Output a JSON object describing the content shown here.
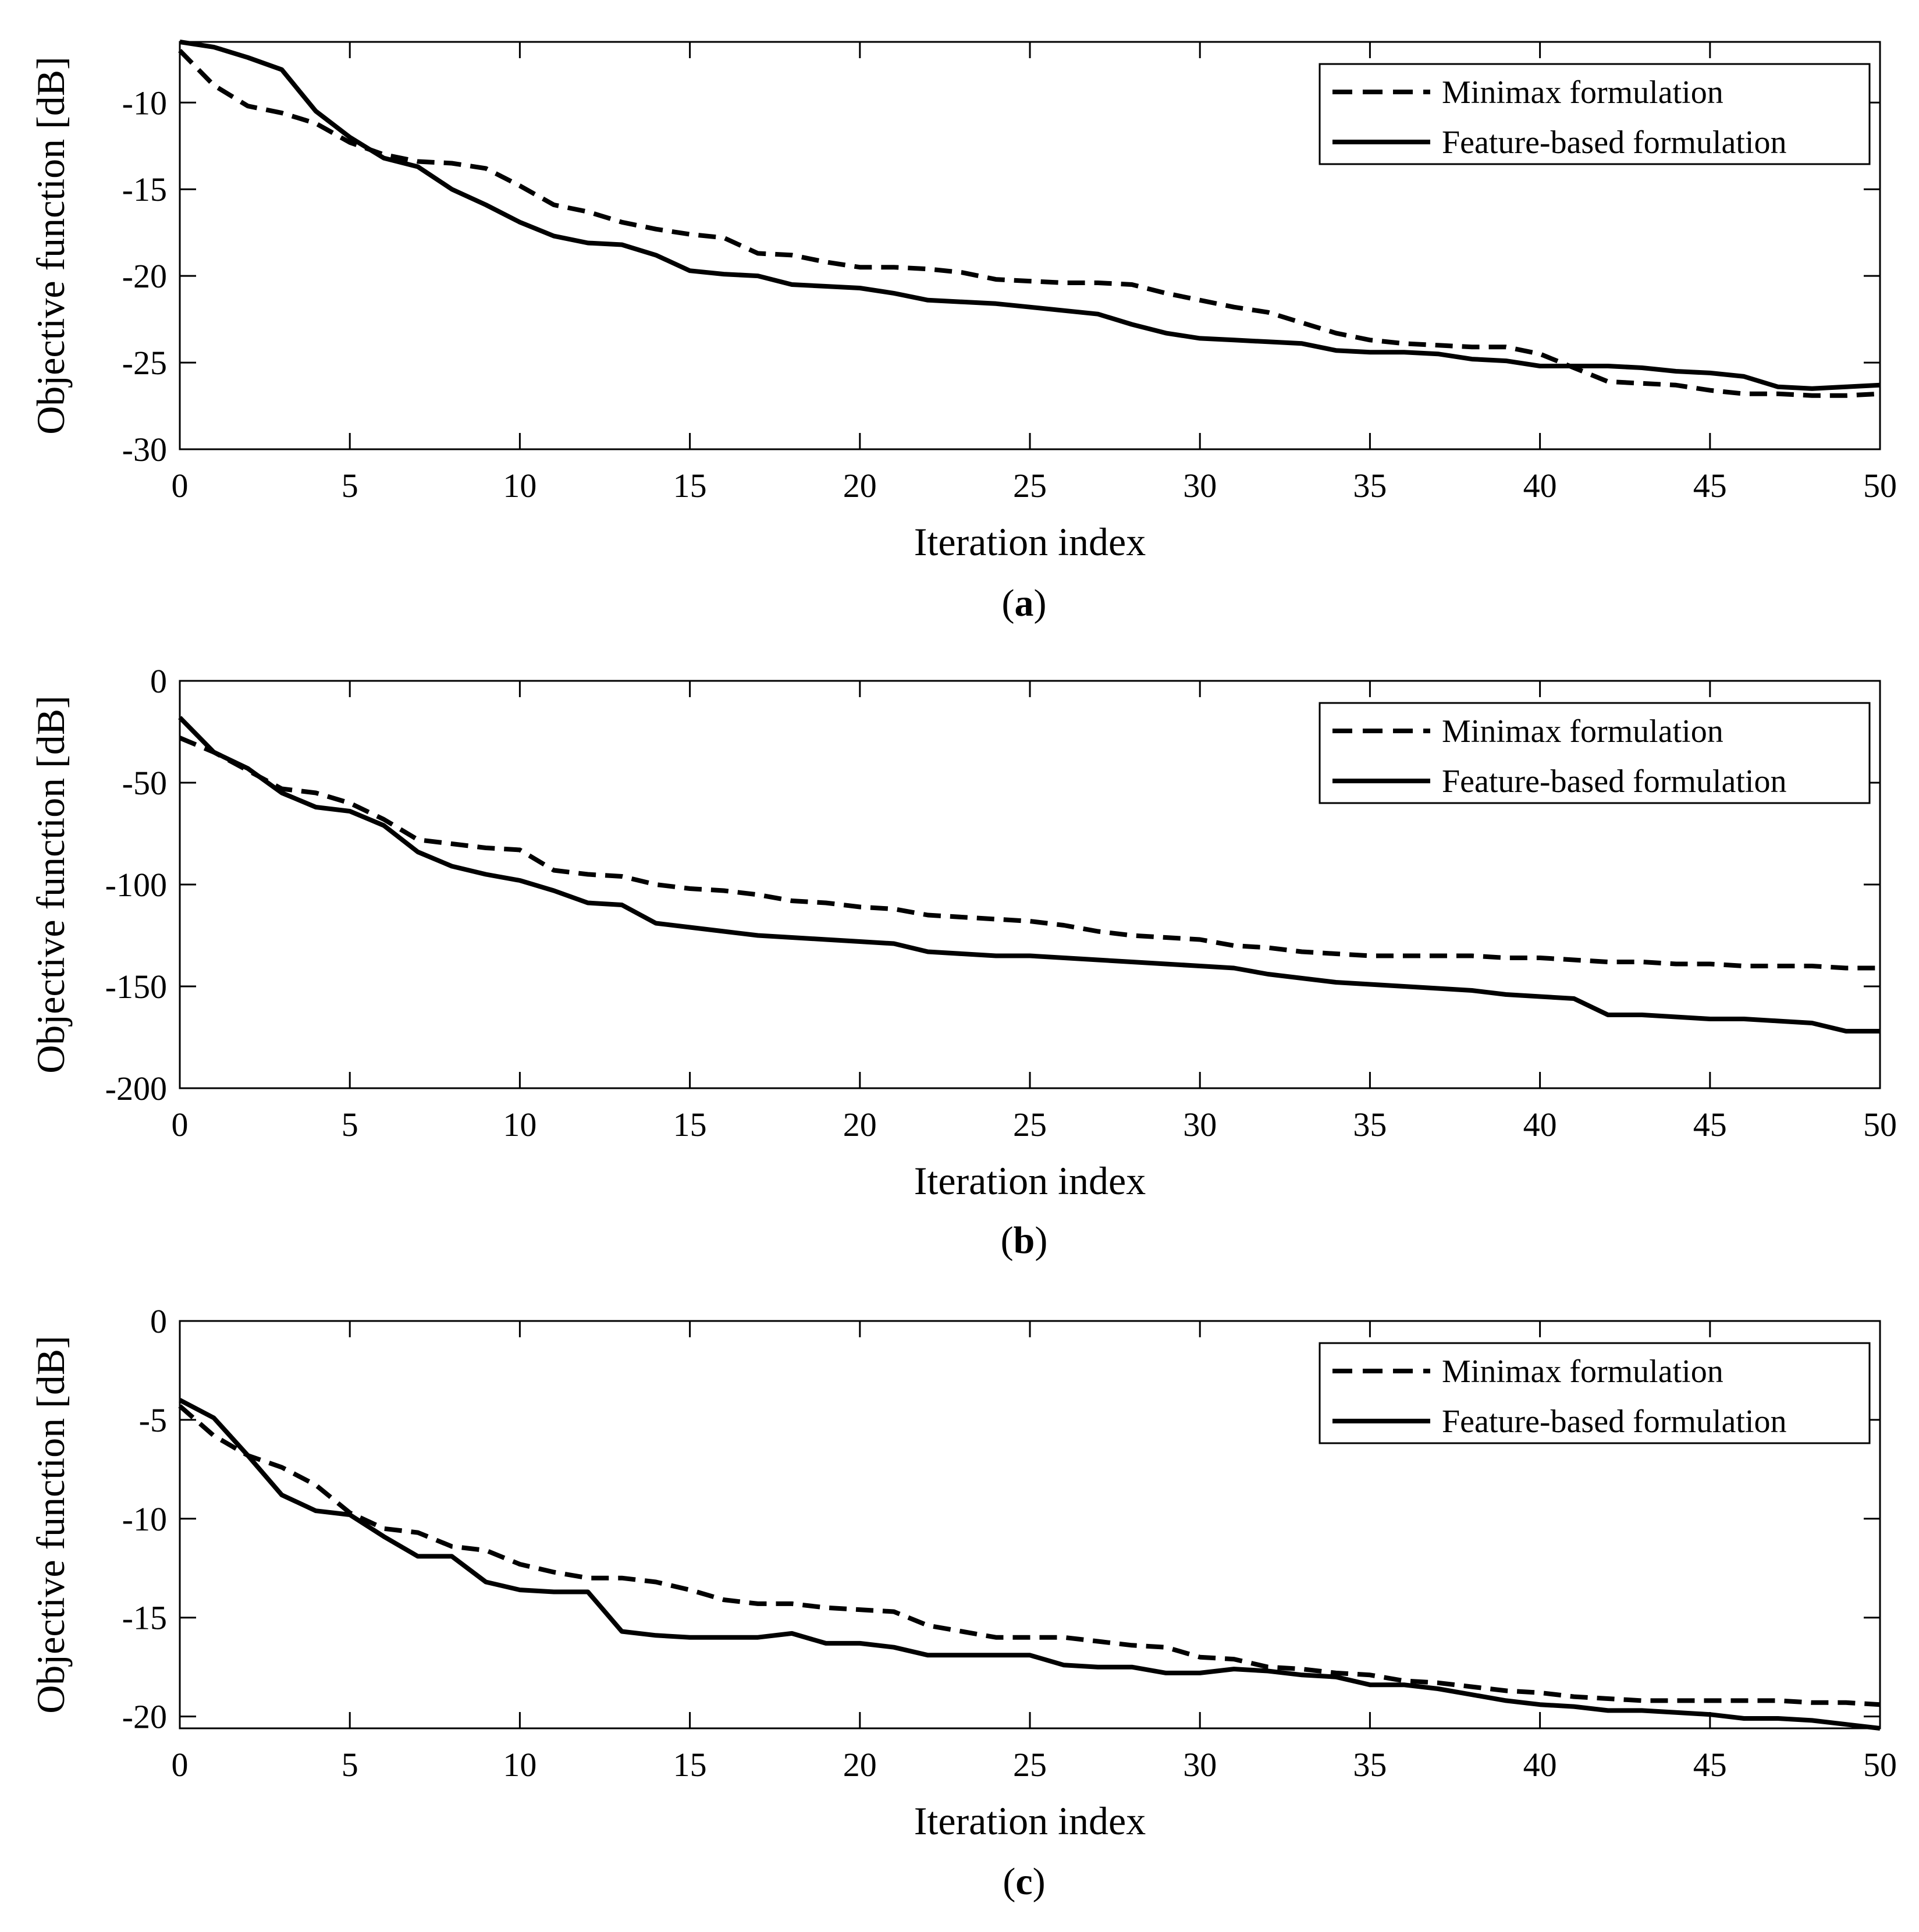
{
  "chart_data": [
    {
      "type": "line",
      "caption": {
        "open": "(",
        "letter": "a",
        "close": ")"
      },
      "xlabel": "Iteration index",
      "ylabel": "Objective function [dB]",
      "xlim": [
        0,
        50
      ],
      "ylim": [
        -30,
        -6.5
      ],
      "xticks": [
        0,
        5,
        10,
        15,
        20,
        25,
        30,
        35,
        40,
        45,
        50
      ],
      "yticks": [
        -30,
        -25,
        -20,
        -15,
        -10
      ],
      "legend_position": "top-right",
      "colors": {
        "line": "#000000",
        "axes": "#000000",
        "background": "#ffffff"
      },
      "series": [
        {
          "name": "Minimax formulation",
          "style": "dashed",
          "x": [
            0,
            1,
            2,
            3,
            4,
            5,
            6,
            7,
            8,
            9,
            10,
            11,
            12,
            13,
            14,
            15,
            16,
            17,
            18,
            19,
            20,
            21,
            22,
            23,
            24,
            25,
            26,
            27,
            28,
            29,
            30,
            31,
            32,
            33,
            34,
            35,
            36,
            37,
            38,
            39,
            40,
            41,
            42,
            43,
            44,
            45,
            46,
            47,
            48,
            49,
            50
          ],
          "values": [
            -7.0,
            -9.0,
            -10.2,
            -10.6,
            -11.2,
            -12.3,
            -13.0,
            -13.4,
            -13.5,
            -13.8,
            -14.8,
            -15.9,
            -16.3,
            -16.9,
            -17.3,
            -17.6,
            -17.8,
            -18.7,
            -18.8,
            -19.2,
            -19.5,
            -19.5,
            -19.6,
            -19.8,
            -20.2,
            -20.3,
            -20.4,
            -20.4,
            -20.5,
            -21.0,
            -21.4,
            -21.8,
            -22.1,
            -22.7,
            -23.3,
            -23.7,
            -23.9,
            -24.0,
            -24.1,
            -24.1,
            -24.5,
            -25.3,
            -26.1,
            -26.2,
            -26.3,
            -26.6,
            -26.8,
            -26.8,
            -26.9,
            -26.9,
            -26.8
          ]
        },
        {
          "name": "Feature-based formulation",
          "style": "solid",
          "x": [
            0,
            1,
            2,
            3,
            4,
            5,
            6,
            7,
            8,
            9,
            10,
            11,
            12,
            13,
            14,
            15,
            16,
            17,
            18,
            19,
            20,
            21,
            22,
            23,
            24,
            25,
            26,
            27,
            28,
            29,
            30,
            31,
            32,
            33,
            34,
            35,
            36,
            37,
            38,
            39,
            40,
            41,
            42,
            43,
            44,
            45,
            46,
            47,
            48,
            49,
            50
          ],
          "values": [
            -6.5,
            -6.8,
            -7.4,
            -8.1,
            -10.5,
            -12.0,
            -13.2,
            -13.7,
            -15.0,
            -15.9,
            -16.9,
            -17.7,
            -18.1,
            -18.2,
            -18.8,
            -19.7,
            -19.9,
            -20.0,
            -20.5,
            -20.6,
            -20.7,
            -21.0,
            -21.4,
            -21.5,
            -21.6,
            -21.8,
            -22.0,
            -22.2,
            -22.8,
            -23.3,
            -23.6,
            -23.7,
            -23.8,
            -23.9,
            -24.3,
            -24.4,
            -24.4,
            -24.5,
            -24.8,
            -24.9,
            -25.2,
            -25.2,
            -25.2,
            -25.3,
            -25.5,
            -25.6,
            -25.8,
            -26.4,
            -26.5,
            -26.4,
            -26.3
          ]
        }
      ]
    },
    {
      "type": "line",
      "caption": {
        "open": "(",
        "letter": "b",
        "close": ")"
      },
      "xlabel": "Iteration index",
      "ylabel": "Objective function [dB]",
      "xlim": [
        0,
        50
      ],
      "ylim": [
        -200,
        0
      ],
      "xticks": [
        0,
        5,
        10,
        15,
        20,
        25,
        30,
        35,
        40,
        45,
        50
      ],
      "yticks": [
        -200,
        -150,
        -100,
        -50,
        0
      ],
      "legend_position": "top-right",
      "colors": {
        "line": "#000000",
        "axes": "#000000",
        "background": "#ffffff"
      },
      "series": [
        {
          "name": "Minimax formulation",
          "style": "dashed",
          "x": [
            0,
            1,
            2,
            3,
            4,
            5,
            6,
            7,
            8,
            9,
            10,
            11,
            12,
            13,
            14,
            15,
            16,
            17,
            18,
            19,
            20,
            21,
            22,
            23,
            24,
            25,
            26,
            27,
            28,
            29,
            30,
            31,
            32,
            33,
            34,
            35,
            36,
            37,
            38,
            39,
            40,
            41,
            42,
            43,
            44,
            45,
            46,
            47,
            48,
            49,
            50
          ],
          "values": [
            -28,
            -35,
            -44,
            -53,
            -55,
            -60,
            -68,
            -78,
            -80,
            -82,
            -83,
            -93,
            -95,
            -96,
            -100,
            -102,
            -103,
            -105,
            -108,
            -109,
            -111,
            -112,
            -115,
            -116,
            -117,
            -118,
            -120,
            -123,
            -125,
            -126,
            -127,
            -130,
            -131,
            -133,
            -134,
            -135,
            -135,
            -135,
            -135,
            -136,
            -136,
            -137,
            -138,
            -138,
            -139,
            -139,
            -140,
            -140,
            -140,
            -141,
            -141
          ]
        },
        {
          "name": "Feature-based formulation",
          "style": "solid",
          "x": [
            0,
            1,
            2,
            3,
            4,
            5,
            6,
            7,
            8,
            9,
            10,
            11,
            12,
            13,
            14,
            15,
            16,
            17,
            18,
            19,
            20,
            21,
            22,
            23,
            24,
            25,
            26,
            27,
            28,
            29,
            30,
            31,
            32,
            33,
            34,
            35,
            36,
            37,
            38,
            39,
            40,
            41,
            42,
            43,
            44,
            45,
            46,
            47,
            48,
            49,
            50
          ],
          "values": [
            -18,
            -35,
            -43,
            -55,
            -62,
            -64,
            -71,
            -84,
            -91,
            -95,
            -98,
            -103,
            -109,
            -110,
            -119,
            -121,
            -123,
            -125,
            -126,
            -127,
            -128,
            -129,
            -133,
            -134,
            -135,
            -135,
            -136,
            -137,
            -138,
            -139,
            -140,
            -141,
            -144,
            -146,
            -148,
            -149,
            -150,
            -151,
            -152,
            -154,
            -155,
            -156,
            -164,
            -164,
            -165,
            -166,
            -166,
            -167,
            -168,
            -172,
            -172
          ]
        }
      ]
    },
    {
      "type": "line",
      "caption": {
        "open": "(",
        "letter": "c",
        "close": ")"
      },
      "xlabel": "Iteration index",
      "ylabel": "Objective function [dB]",
      "xlim": [
        0,
        50
      ],
      "ylim": [
        -20.6,
        0
      ],
      "xticks": [
        0,
        5,
        10,
        15,
        20,
        25,
        30,
        35,
        40,
        45,
        50
      ],
      "yticks": [
        -20,
        -15,
        -10,
        -5,
        0
      ],
      "legend_position": "top-right",
      "colors": {
        "line": "#000000",
        "axes": "#000000",
        "background": "#ffffff"
      },
      "series": [
        {
          "name": "Minimax formulation",
          "style": "dashed",
          "x": [
            0,
            1,
            2,
            3,
            4,
            5,
            6,
            7,
            8,
            9,
            10,
            11,
            12,
            13,
            14,
            15,
            16,
            17,
            18,
            19,
            20,
            21,
            22,
            23,
            24,
            25,
            26,
            27,
            28,
            29,
            30,
            31,
            32,
            33,
            34,
            35,
            36,
            37,
            38,
            39,
            40,
            41,
            42,
            43,
            44,
            45,
            46,
            47,
            48,
            49,
            50
          ],
          "values": [
            -4.3,
            -5.8,
            -6.8,
            -7.4,
            -8.3,
            -9.7,
            -10.5,
            -10.7,
            -11.4,
            -11.6,
            -12.3,
            -12.7,
            -13.0,
            -13.0,
            -13.2,
            -13.6,
            -14.1,
            -14.3,
            -14.3,
            -14.5,
            -14.6,
            -14.7,
            -15.4,
            -15.7,
            -16.0,
            -16.0,
            -16.0,
            -16.2,
            -16.4,
            -16.5,
            -17.0,
            -17.1,
            -17.5,
            -17.6,
            -17.8,
            -17.9,
            -18.2,
            -18.3,
            -18.5,
            -18.7,
            -18.8,
            -19.0,
            -19.1,
            -19.2,
            -19.2,
            -19.2,
            -19.2,
            -19.2,
            -19.3,
            -19.3,
            -19.4
          ]
        },
        {
          "name": "Feature-based formulation",
          "style": "solid",
          "x": [
            0,
            1,
            2,
            3,
            4,
            5,
            6,
            7,
            8,
            9,
            10,
            11,
            12,
            13,
            14,
            15,
            16,
            17,
            18,
            19,
            20,
            21,
            22,
            23,
            24,
            25,
            26,
            27,
            28,
            29,
            30,
            31,
            32,
            33,
            34,
            35,
            36,
            37,
            38,
            39,
            40,
            41,
            42,
            43,
            44,
            45,
            46,
            47,
            48,
            49,
            50
          ],
          "values": [
            -4.0,
            -4.9,
            -6.8,
            -8.8,
            -9.6,
            -9.8,
            -10.9,
            -11.9,
            -11.9,
            -13.2,
            -13.6,
            -13.7,
            -13.7,
            -15.7,
            -15.9,
            -16.0,
            -16.0,
            -16.0,
            -15.8,
            -16.3,
            -16.3,
            -16.5,
            -16.9,
            -16.9,
            -16.9,
            -16.9,
            -17.4,
            -17.5,
            -17.5,
            -17.8,
            -17.8,
            -17.6,
            -17.7,
            -17.9,
            -18.0,
            -18.4,
            -18.4,
            -18.6,
            -18.9,
            -19.2,
            -19.4,
            -19.5,
            -19.7,
            -19.7,
            -19.8,
            -19.9,
            -20.1,
            -20.1,
            -20.2,
            -20.4,
            -20.6
          ]
        }
      ]
    }
  ]
}
